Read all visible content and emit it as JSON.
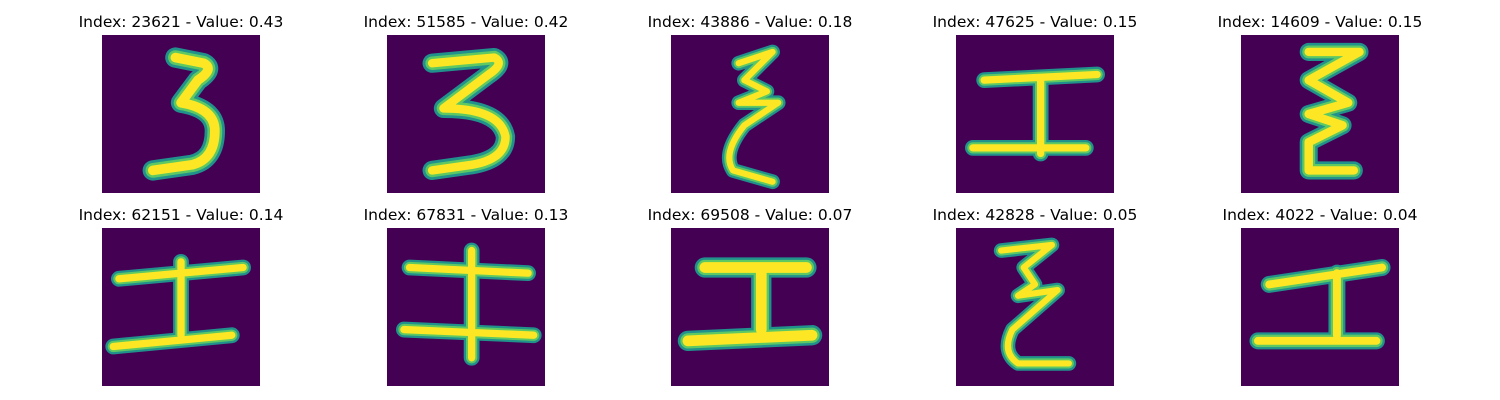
{
  "colors": {
    "background": "#440154",
    "stroke_edge": "#21918c",
    "stroke_mid": "#5ec962",
    "stroke_core": "#fde725"
  },
  "panels": [
    {
      "title": "Index: 23621 - Value: 0.43",
      "glyph": "three"
    },
    {
      "title": "Index: 51585 - Value: 0.42",
      "glyph": "three"
    },
    {
      "title": "Index: 43886 - Value: 0.18",
      "glyph": "xi-narrow"
    },
    {
      "title": "Index: 47625 - Value: 0.15",
      "glyph": "i-beam"
    },
    {
      "title": "Index: 14609 - Value: 0.15",
      "glyph": "xi-wide"
    },
    {
      "title": "Index: 62151 - Value: 0.14",
      "glyph": "i-beam"
    },
    {
      "title": "Index: 67831 - Value: 0.13",
      "glyph": "i-beam"
    },
    {
      "title": "Index: 69508 - Value: 0.07",
      "glyph": "i-beam"
    },
    {
      "title": "Index: 42828 - Value: 0.05",
      "glyph": "xi-narrow"
    },
    {
      "title": "Index: 4022 - Value: 0.04",
      "glyph": "i-beam"
    }
  ]
}
